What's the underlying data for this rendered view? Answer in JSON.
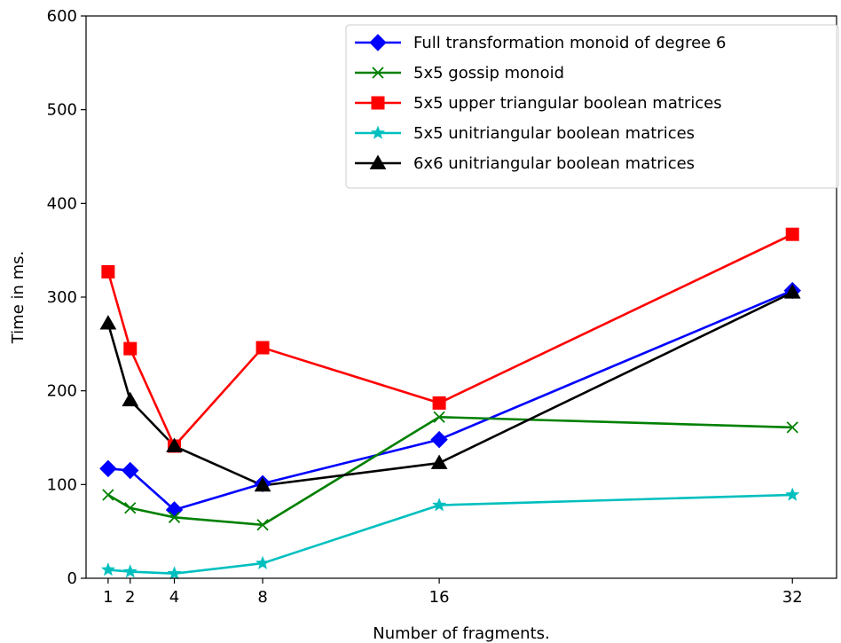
{
  "chart_data": {
    "type": "line",
    "title": "",
    "xlabel": "Number of fragments.",
    "ylabel": "Time in ms.",
    "x": [
      1,
      2,
      4,
      8,
      16,
      32
    ],
    "xticks": [
      1,
      2,
      4,
      8,
      16,
      32
    ],
    "xtick_labels": [
      "1",
      "2",
      "4",
      "8",
      "16",
      "32"
    ],
    "yticks": [
      0,
      100,
      200,
      300,
      400,
      500,
      600
    ],
    "ytick_labels": [
      "0",
      "100",
      "200",
      "300",
      "400",
      "500",
      "600"
    ],
    "xlim": [
      0,
      34
    ],
    "ylim": [
      0,
      600
    ],
    "grid": false,
    "legend_position": "top-right",
    "series": [
      {
        "name": "Full transformation monoid of degree 6",
        "color": "#0000ff",
        "marker": "diamond",
        "values": [
          117,
          115,
          73,
          101,
          148,
          307
        ]
      },
      {
        "name": "5x5 gossip monoid",
        "color": "#008000",
        "marker": "x",
        "values": [
          89,
          75,
          65,
          57,
          172,
          161
        ]
      },
      {
        "name": "5x5 upper triangular boolean matrices",
        "color": "#ff0000",
        "marker": "square",
        "values": [
          327,
          245,
          141,
          246,
          187,
          367
        ]
      },
      {
        "name": "5x5 unitriangular boolean matrices",
        "color": "#00bfbf",
        "marker": "star",
        "values": [
          9,
          7,
          5,
          16,
          78,
          89
        ]
      },
      {
        "name": "6x6 unitriangular boolean matrices",
        "color": "#000000",
        "marker": "triangle",
        "values": [
          272,
          190,
          141,
          99,
          123,
          305
        ]
      }
    ]
  }
}
